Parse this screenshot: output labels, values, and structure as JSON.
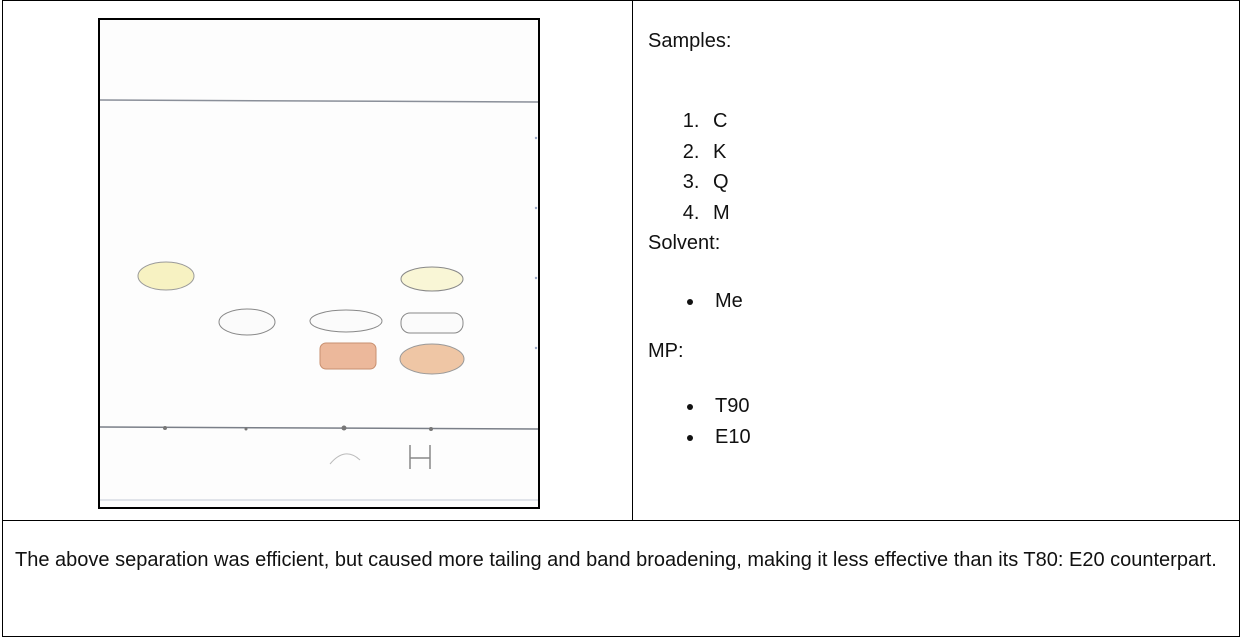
{
  "table": {
    "samples_label": "Samples:",
    "samples": [
      "C",
      "K",
      "Q",
      "M"
    ],
    "solvent_label": "Solvent:",
    "solvent": [
      "Me"
    ],
    "mp_label": "MP:",
    "mp": [
      "T90",
      "E10"
    ],
    "note": "The above separation was efficient, but caused more tailing and band broadening, making it less effective than its T80: E20 counterpart."
  }
}
